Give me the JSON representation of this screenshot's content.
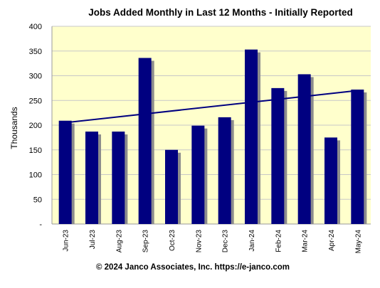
{
  "chart_data": {
    "type": "bar",
    "title": "Jobs Added Monthly in Last 12 Months - Initially Reported",
    "ylabel": "Thousands",
    "xlabel": "",
    "categories": [
      "Jun-23",
      "Jul-23",
      "Aug-23",
      "Sep-23",
      "Oct-23",
      "Nov-23",
      "Dec-23",
      "Jan-24",
      "Feb-24",
      "Mar-24",
      "Apr-24",
      "May-24"
    ],
    "series": [
      {
        "values": [
          209,
          187,
          187,
          336,
          150,
          199,
          216,
          353,
          275,
          303,
          175,
          272
        ]
      }
    ],
    "trendline": {
      "type": "linear",
      "start": 205,
      "end": 270
    },
    "ylim": [
      0,
      400
    ],
    "yticks": [
      0,
      50,
      100,
      150,
      200,
      250,
      300,
      350,
      400
    ],
    "ytick_labels": [
      "-",
      "50",
      "100",
      "150",
      "200",
      "250",
      "300",
      "350",
      "400"
    ],
    "grid": true,
    "legend": "none",
    "colors": {
      "bar": "#000080",
      "bar_shadow": "#8c8c8c",
      "trendline": "#000080",
      "plot_background": "#ffffcc",
      "gridline": "#c8c8c8"
    }
  },
  "footer": "© 2024 Janco Associates, Inc.  https://e-janco.com"
}
